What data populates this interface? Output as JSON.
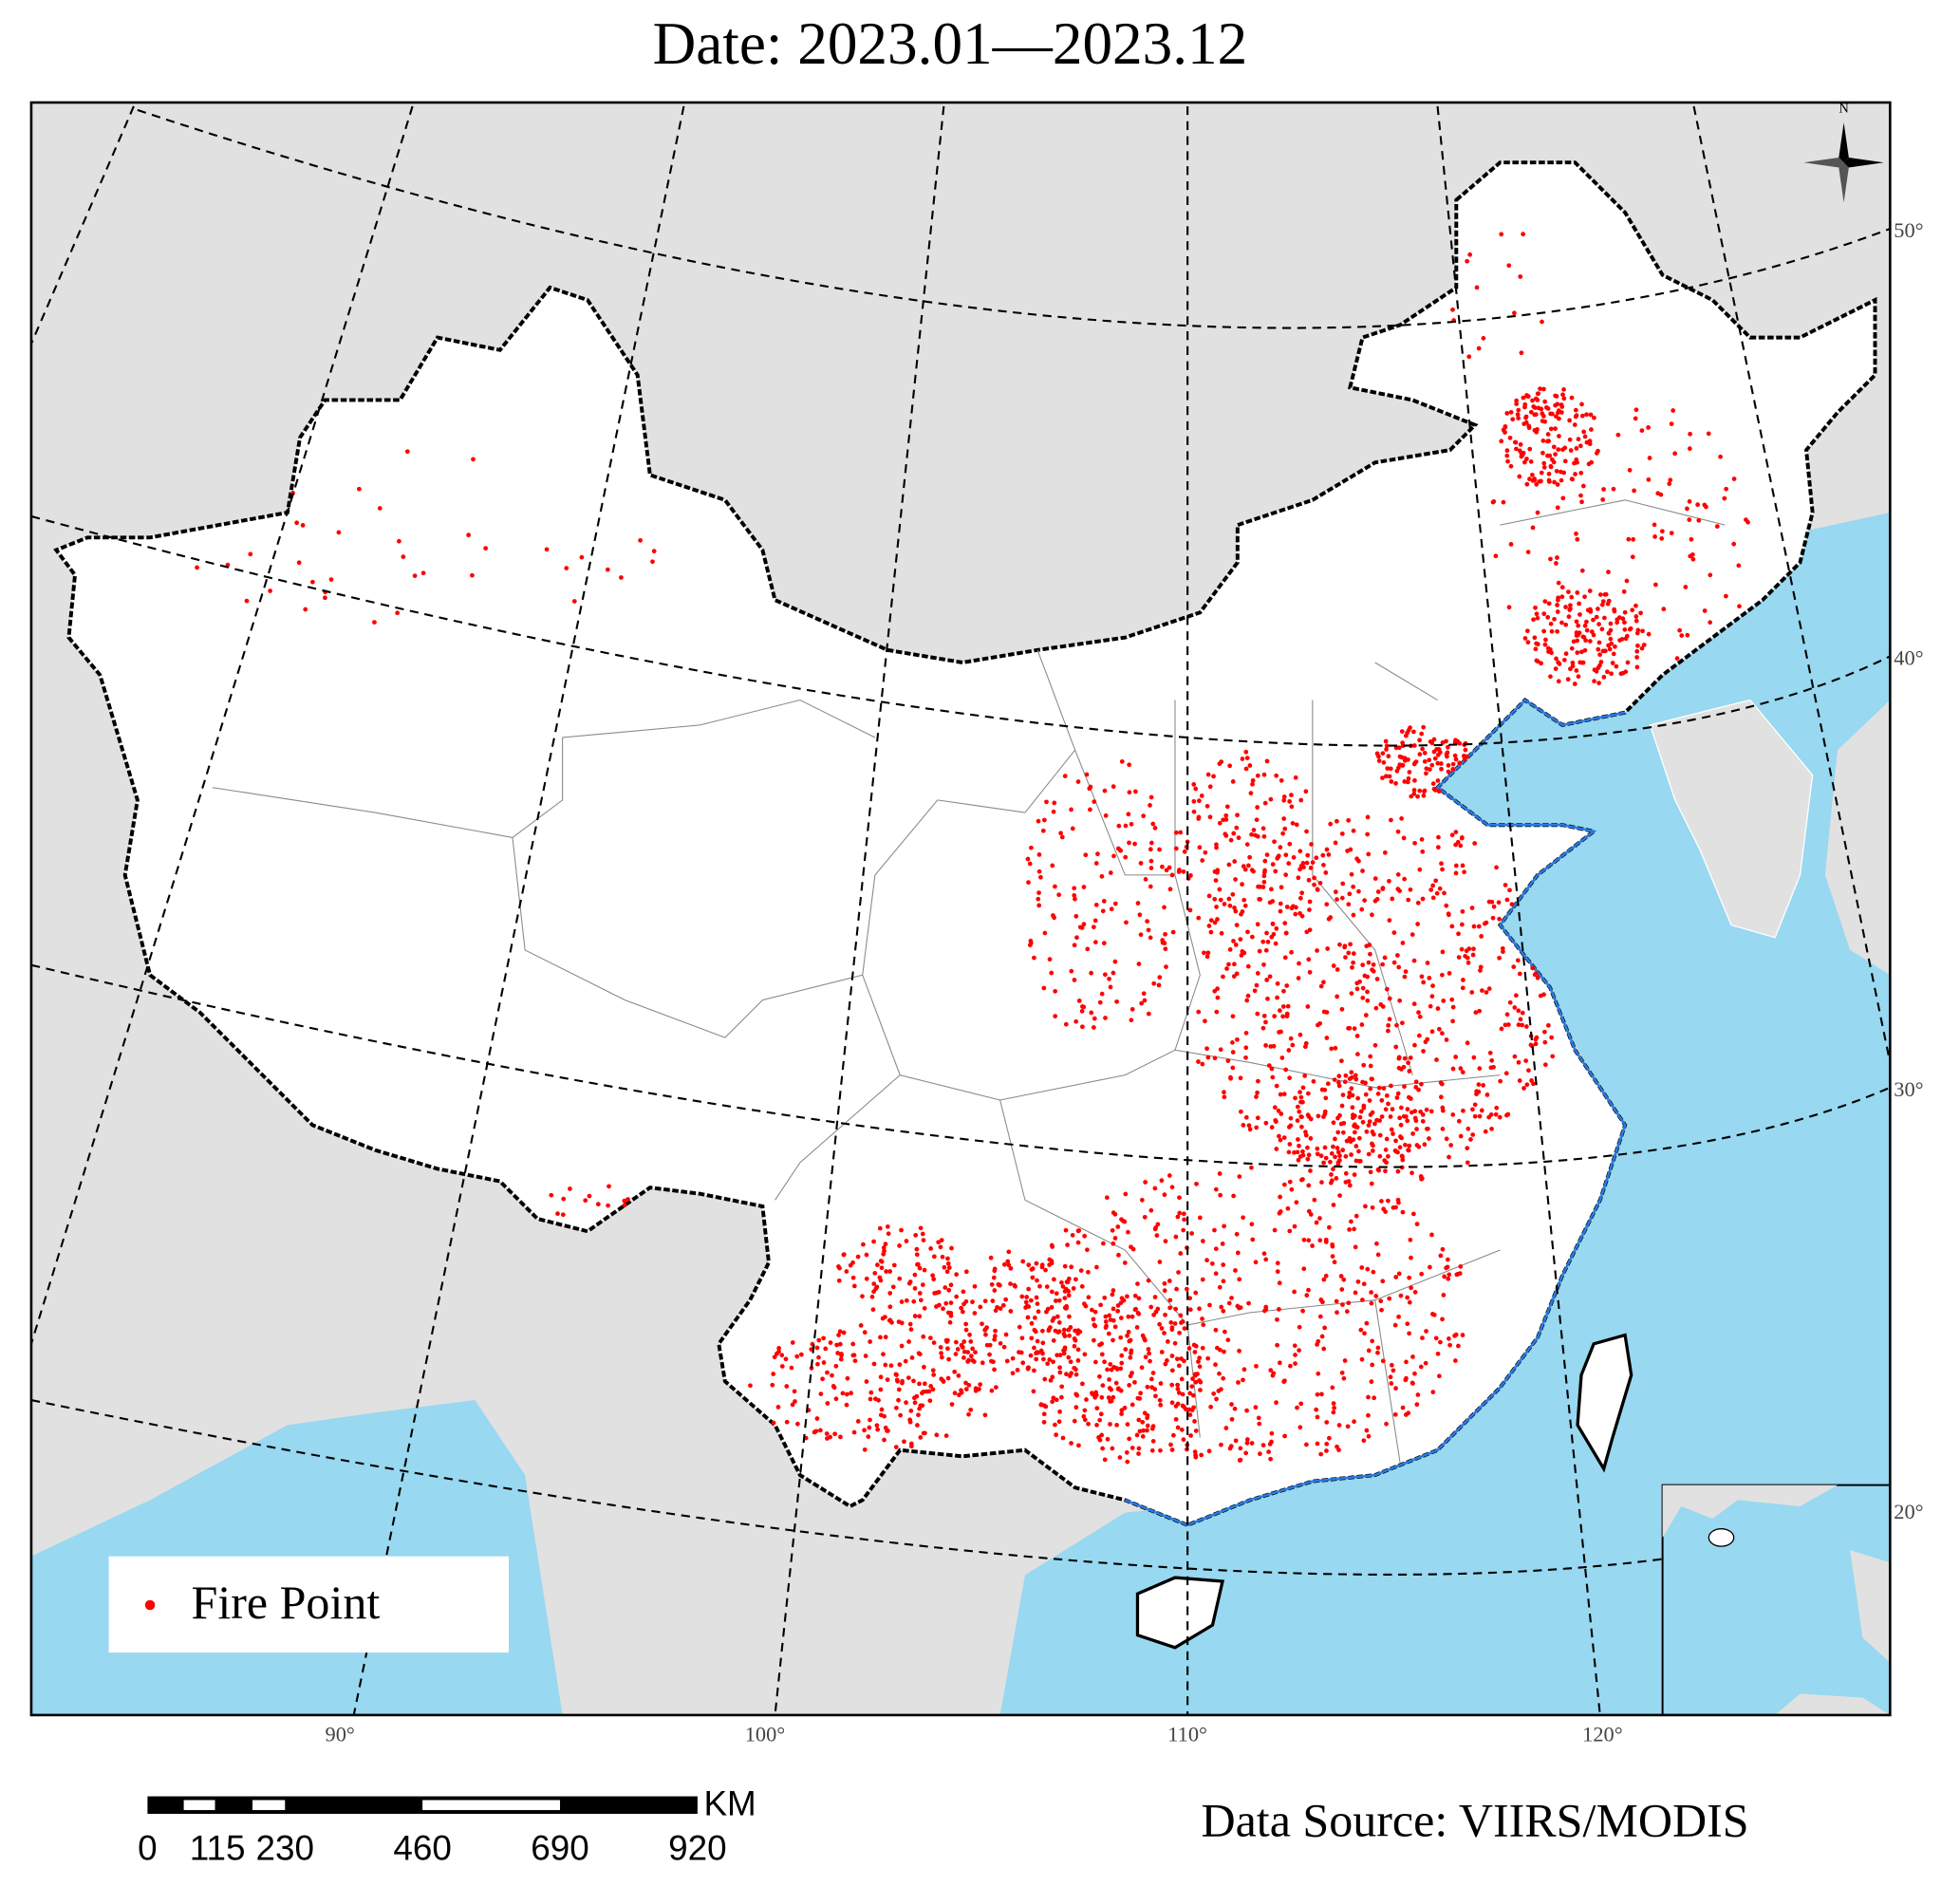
{
  "title": "Date: 2023.01—2023.12",
  "legend": {
    "label": "Fire Point"
  },
  "longitude_labels": [
    "90°",
    "100°",
    "110°",
    "120°"
  ],
  "latitude_labels": [
    "50°",
    "40°",
    "30°",
    "20°"
  ],
  "scale_bar": {
    "ticks": [
      "0",
      "115",
      "230",
      "460",
      "690",
      "920"
    ],
    "unit": "KM"
  },
  "compass": "N",
  "source": "Data Source: VIIRS/MODIS"
}
